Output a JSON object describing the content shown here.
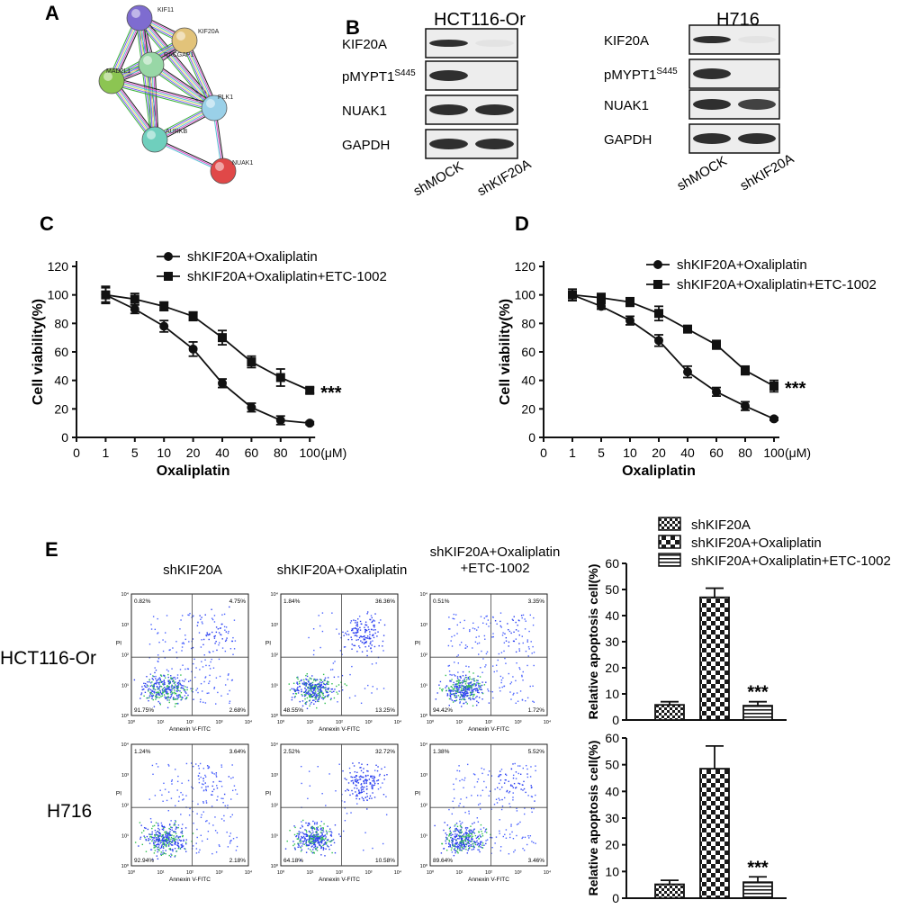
{
  "panels": {
    "a": {
      "letter": "A",
      "nodes": [
        {
          "label": "KIF11",
          "color": "#7e6cd0"
        },
        {
          "label": "KIF20A",
          "color": "#e2c37a"
        },
        {
          "label": "RACGAP1",
          "color": "#98d7a6"
        },
        {
          "label": "MAD2L1",
          "color": "#8cc552"
        },
        {
          "label": "PLK1",
          "color": "#9ad0e8"
        },
        {
          "label": "AURKB",
          "color": "#6fcfbd"
        },
        {
          "label": "NUAK1",
          "color": "#e04848"
        }
      ],
      "edge_colors": [
        "#1a1a1a",
        "#d64fc8",
        "#57c4d4",
        "#e8e070",
        "#7a5cff",
        "#3cb43c"
      ]
    },
    "b": {
      "letter": "B",
      "blots": [
        {
          "cell_line": "HCT116-Or",
          "rows": [
            "KIF20A",
            "pMYPT1",
            "NUAK1",
            "GAPDH"
          ],
          "superscript": "S445",
          "lanes": [
            "shMOCK",
            "shKIF20A"
          ]
        },
        {
          "cell_line": "H716",
          "rows": [
            "KIF20A",
            "pMYPT1",
            "NUAK1",
            "GAPDH"
          ],
          "superscript": "S445",
          "lanes": [
            "shMOCK",
            "shKIF20A"
          ]
        }
      ]
    },
    "e": {
      "letter": "E",
      "flow_titles": [
        "shKIF20A",
        "shKIF20A+Oxaliplatin",
        "shKIF20A+Oxaliplatin",
        "+ETC-1002"
      ],
      "row_labels": [
        "HCT116-Or",
        "H716"
      ],
      "axis_labels": {
        "x": "Annexin V-FITC",
        "y": "PI"
      },
      "log_ticks": [
        "10⁰",
        "10¹",
        "10²",
        "10³",
        "10⁴"
      ],
      "quadrants": [
        [
          [
            "0.82%",
            "4.75%",
            "91.75%",
            "2.68%"
          ],
          [
            "1.84%",
            "36.36%",
            "48.55%",
            "13.25%"
          ],
          [
            "0.51%",
            "3.35%",
            "94.42%",
            "1.72%"
          ]
        ],
        [
          [
            "1.24%",
            "3.64%",
            "92.94%",
            "2.18%"
          ],
          [
            "2.52%",
            "32.72%",
            "64.18%",
            "10.58%"
          ],
          [
            "1.38%",
            "5.52%",
            "89.64%",
            "3.46%"
          ]
        ]
      ]
    }
  },
  "chart_data": [
    {
      "type": "line",
      "panel": "C",
      "xlabel": "Oxaliplatin",
      "x_unit": "(μM)",
      "ylabel": "Cell viability(%)",
      "categories": [
        "0",
        "1",
        "5",
        "10",
        "20",
        "40",
        "60",
        "80",
        "100"
      ],
      "x": [
        "1",
        "5",
        "10",
        "20",
        "40",
        "60",
        "80",
        "100"
      ],
      "ylim": [
        0,
        120
      ],
      "yticks": [
        "0",
        "20",
        "40",
        "60",
        "80",
        "100",
        "120"
      ],
      "series": [
        {
          "name": "shKIF20A+Oxaliplatin",
          "marker": "circle",
          "values": [
            100,
            90,
            78,
            62,
            38,
            21,
            12,
            10
          ],
          "errors": [
            6,
            3,
            4,
            5,
            3,
            3,
            3,
            1
          ]
        },
        {
          "name": "shKIF20A+Oxaliplatin+ETC-1002",
          "marker": "square",
          "values": [
            100,
            97,
            92,
            85,
            70,
            53,
            42,
            33
          ],
          "errors": [
            5,
            4,
            3,
            3,
            5,
            4,
            6,
            2
          ]
        }
      ],
      "annotation": "***"
    },
    {
      "type": "line",
      "panel": "D",
      "xlabel": "Oxaliplatin",
      "x_unit": "(μM)",
      "ylabel": "Cell viability(%)",
      "categories": [
        "0",
        "1",
        "5",
        "10",
        "20",
        "40",
        "60",
        "80",
        "100"
      ],
      "x": [
        "1",
        "5",
        "10",
        "20",
        "40",
        "60",
        "80",
        "100"
      ],
      "ylim": [
        0,
        120
      ],
      "yticks": [
        "0",
        "20",
        "40",
        "60",
        "80",
        "100",
        "120"
      ],
      "series": [
        {
          "name": "shKIF20A+Oxaliplatin",
          "marker": "circle",
          "values": [
            100,
            92,
            82,
            68,
            46,
            32,
            22,
            13
          ],
          "errors": [
            4,
            2,
            3,
            4,
            4,
            3,
            3,
            1
          ]
        },
        {
          "name": "shKIF20A+Oxaliplatin+ETC-1002",
          "marker": "square",
          "values": [
            100,
            98,
            95,
            87,
            76,
            65,
            47,
            36
          ],
          "errors": [
            4,
            3,
            3,
            5,
            2,
            3,
            3,
            4
          ]
        }
      ],
      "annotation": "***"
    },
    {
      "type": "bar",
      "panel": "E-HCT116-Or",
      "ylabel": "Relative apoptosis cell(%)",
      "categories": [
        "shKIF20A",
        "shKIF20A+Oxaliplatin",
        "shKIF20A+Oxaliplatin+ETC-1002"
      ],
      "values": [
        5.8,
        47,
        5.5
      ],
      "errors": [
        1.2,
        3.5,
        1.5
      ],
      "ylim": [
        0,
        60
      ],
      "yticks": [
        "0",
        "10",
        "20",
        "30",
        "40",
        "50",
        "60"
      ],
      "annotation": "***"
    },
    {
      "type": "bar",
      "panel": "E-H716",
      "ylabel": "Relative apoptosis cell(%)",
      "categories": [
        "shKIF20A",
        "shKIF20A+Oxaliplatin",
        "shKIF20A+Oxaliplatin+ETC-1002"
      ],
      "values": [
        5.2,
        48.5,
        6
      ],
      "errors": [
        1.5,
        8.5,
        2
      ],
      "ylim": [
        0,
        60
      ],
      "yticks": [
        "0",
        "10",
        "20",
        "30",
        "40",
        "50",
        "60"
      ],
      "annotation": "***"
    }
  ]
}
